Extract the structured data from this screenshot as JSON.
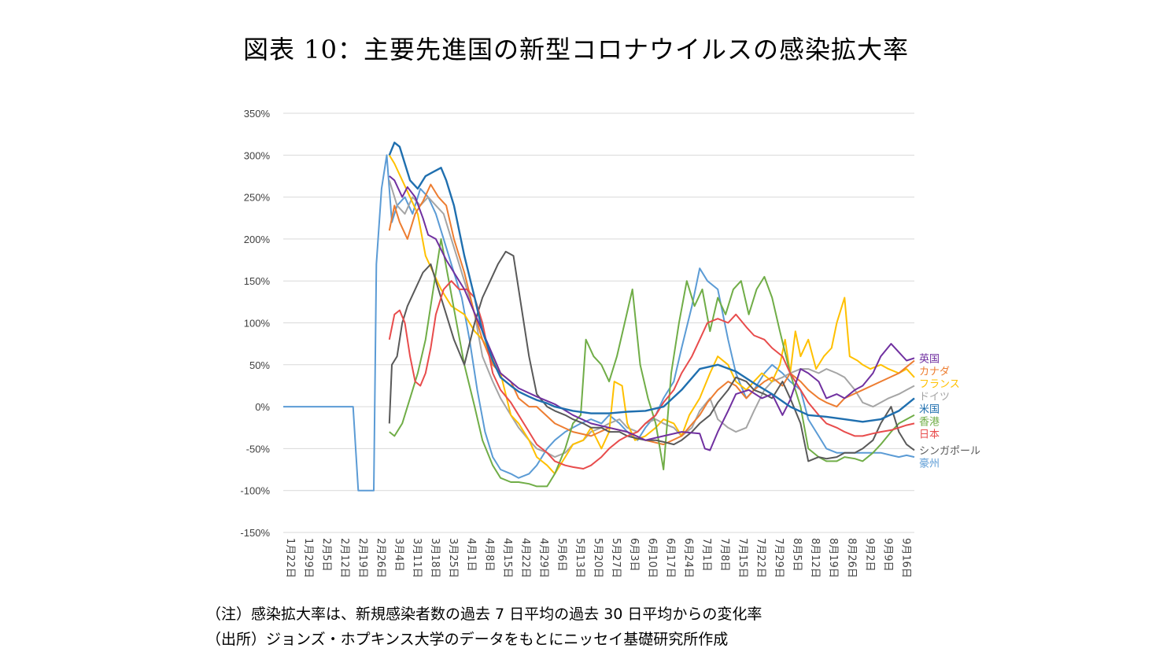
{
  "title": "図表 10：主要先進国の新型コロナウイルスの感染拡大率",
  "notes": {
    "note": "（注）感染拡大率は、新規感染者数の過去 7 日平均の過去 30 日平均からの変化率",
    "source": "（出所）ジョンズ・ホプキンス大学のデータをもとにニッセイ基礎研究所作成"
  },
  "chart_data": {
    "type": "line",
    "title": "",
    "xlabel": "",
    "ylabel": "",
    "grid": true,
    "legend": "end-of-line labels (right)",
    "y_unit": "%",
    "ylim": [
      -150,
      350
    ],
    "yticks": [
      350,
      300,
      250,
      200,
      150,
      100,
      50,
      0,
      -50,
      -100,
      -150
    ],
    "ytick_labels": [
      "350%",
      "300%",
      "250%",
      "200%",
      "150%",
      "100%",
      "50%",
      "0%",
      "-50%",
      "-100%",
      "-150%"
    ],
    "x_start": "2020-01-22",
    "x_end": "2020-09-22",
    "x_ticks": [
      "1月22日",
      "1月29日",
      "2月5日",
      "2月12日",
      "2月19日",
      "2月26日",
      "3月4日",
      "3月11日",
      "3月18日",
      "3月25日",
      "4月1日",
      "4月8日",
      "4月15日",
      "4月22日",
      "4月29日",
      "5月6日",
      "5月13日",
      "5月20日",
      "5月27日",
      "6月3日",
      "6月10日",
      "6月17日",
      "6月24日",
      "7月1日",
      "7月8日",
      "7月15日",
      "7月22日",
      "7月29日",
      "8月5日",
      "8月12日",
      "8月19日",
      "8月26日",
      "9月2日",
      "9月9日",
      "9月16日"
    ],
    "series": [
      {
        "name": "英国",
        "color": "#7030a0",
        "x": [
          "3/3",
          "3/5",
          "3/8",
          "3/10",
          "3/13",
          "3/16",
          "3/18",
          "3/21",
          "3/25",
          "4/1",
          "4/8",
          "4/15",
          "4/22",
          "4/29",
          "5/6",
          "5/13",
          "5/20",
          "5/27",
          "6/3",
          "6/10",
          "6/17",
          "6/24",
          "7/1",
          "7/3",
          "7/5",
          "7/8",
          "7/12",
          "7/15",
          "7/20",
          "7/25",
          "7/29",
          "8/2",
          "8/5",
          "8/9",
          "8/12",
          "8/16",
          "8/19",
          "8/23",
          "8/26",
          "8/30",
          "9/2",
          "9/6",
          "9/9",
          "9/13",
          "9/16",
          "9/19",
          "9/22"
        ],
        "y": [
          275,
          270,
          250,
          262,
          250,
          225,
          205,
          200,
          175,
          140,
          90,
          40,
          22,
          12,
          3,
          -10,
          -20,
          -25,
          -30,
          -40,
          -35,
          -30,
          -32,
          -50,
          -52,
          -30,
          -5,
          15,
          20,
          10,
          15,
          -10,
          8,
          45,
          40,
          30,
          10,
          15,
          10,
          20,
          25,
          40,
          60,
          75,
          65,
          55,
          58
        ]
      },
      {
        "name": "カナダ",
        "color": "#ed7d31",
        "x": [
          "3/3",
          "3/5",
          "3/7",
          "3/10",
          "3/13",
          "3/16",
          "3/19",
          "3/22",
          "3/25",
          "3/28",
          "4/1",
          "4/5",
          "4/8",
          "4/12",
          "4/15",
          "4/19",
          "4/22",
          "4/26",
          "4/29",
          "5/6",
          "5/13",
          "5/20",
          "5/27",
          "6/3",
          "6/10",
          "6/17",
          "6/24",
          "7/1",
          "7/4",
          "7/8",
          "7/12",
          "7/15",
          "7/19",
          "7/22",
          "7/26",
          "7/29",
          "8/2",
          "8/5",
          "8/9",
          "8/12",
          "8/16",
          "8/19",
          "8/23",
          "8/26",
          "9/2",
          "9/9",
          "9/16",
          "9/22"
        ],
        "y": [
          210,
          240,
          220,
          200,
          230,
          245,
          265,
          250,
          240,
          200,
          160,
          110,
          80,
          50,
          40,
          30,
          10,
          0,
          0,
          -20,
          -30,
          -35,
          -25,
          -30,
          -40,
          -45,
          -35,
          -10,
          5,
          20,
          30,
          25,
          10,
          20,
          30,
          35,
          25,
          40,
          30,
          20,
          10,
          5,
          0,
          10,
          20,
          30,
          40,
          55
        ]
      },
      {
        "name": "フランス",
        "color": "#ffc000",
        "x": [
          "3/3",
          "3/5",
          "3/8",
          "3/11",
          "3/14",
          "3/17",
          "3/20",
          "3/23",
          "3/27",
          "4/1",
          "4/5",
          "4/8",
          "4/12",
          "4/15",
          "4/19",
          "4/22",
          "4/26",
          "4/29",
          "5/3",
          "5/6",
          "5/10",
          "5/13",
          "5/17",
          "5/20",
          "5/24",
          "5/27",
          "5/29",
          "6/1",
          "6/3",
          "6/6",
          "6/10",
          "6/14",
          "6/17",
          "6/21",
          "6/24",
          "6/27",
          "7/1",
          "7/5",
          "7/8",
          "7/12",
          "7/15",
          "7/19",
          "7/22",
          "7/25",
          "7/29",
          "8/1",
          "8/3",
          "8/5",
          "8/7",
          "8/9",
          "8/12",
          "8/15",
          "8/18",
          "8/21",
          "8/23",
          "8/25",
          "8/26",
          "8/28",
          "8/31",
          "9/2",
          "9/5",
          "9/9",
          "9/12",
          "9/16",
          "9/19",
          "9/22"
        ],
        "y": [
          300,
          290,
          270,
          250,
          230,
          180,
          160,
          140,
          120,
          110,
          90,
          80,
          60,
          40,
          -10,
          -20,
          -40,
          -60,
          -70,
          -80,
          -60,
          -45,
          -40,
          -25,
          -50,
          -30,
          30,
          25,
          -20,
          -40,
          -35,
          -25,
          -15,
          -20,
          -35,
          -10,
          10,
          40,
          60,
          50,
          30,
          20,
          30,
          40,
          30,
          50,
          80,
          40,
          90,
          60,
          80,
          45,
          60,
          70,
          100,
          120,
          130,
          60,
          55,
          50,
          45,
          50,
          45,
          40,
          45,
          35
        ]
      },
      {
        "name": "ドイツ",
        "color": "#a5a5a5",
        "x": [
          "3/3",
          "3/6",
          "3/9",
          "3/12",
          "3/15",
          "3/18",
          "3/21",
          "3/24",
          "3/27",
          "4/1",
          "4/5",
          "4/8",
          "4/12",
          "4/15",
          "4/19",
          "4/22",
          "4/26",
          "4/29",
          "5/3",
          "5/6",
          "5/10",
          "5/13",
          "5/17",
          "5/20",
          "5/24",
          "5/27",
          "5/31",
          "6/3",
          "6/7",
          "6/10",
          "6/14",
          "6/17",
          "6/21",
          "6/24",
          "6/28",
          "7/1",
          "7/5",
          "7/8",
          "7/12",
          "7/15",
          "7/19",
          "7/22",
          "7/26",
          "7/29",
          "8/2",
          "8/5",
          "8/9",
          "8/12",
          "8/16",
          "8/19",
          "8/23",
          "8/26",
          "8/30",
          "9/2",
          "9/6",
          "9/9",
          "9/12",
          "9/16",
          "9/19",
          "9/22"
        ],
        "y": [
          270,
          240,
          230,
          250,
          240,
          250,
          240,
          230,
          200,
          150,
          110,
          60,
          30,
          10,
          -10,
          -25,
          -40,
          -50,
          -55,
          -60,
          -55,
          -45,
          -40,
          -30,
          -25,
          -20,
          -15,
          -25,
          -30,
          -20,
          -15,
          -20,
          -25,
          -35,
          -25,
          -5,
          10,
          -15,
          -25,
          -30,
          -25,
          -5,
          20,
          30,
          35,
          40,
          45,
          45,
          40,
          45,
          40,
          35,
          20,
          5,
          0,
          5,
          10,
          15,
          20,
          25
        ]
      },
      {
        "name": "米国",
        "color": "#1f6faf",
        "x": [
          "3/3",
          "3/5",
          "3/7",
          "3/9",
          "3/11",
          "3/14",
          "3/17",
          "3/20",
          "3/23",
          "3/25",
          "3/28",
          "4/1",
          "4/5",
          "4/8",
          "4/12",
          "4/15",
          "4/19",
          "4/22",
          "4/26",
          "4/29",
          "5/3",
          "5/6",
          "5/13",
          "5/20",
          "5/27",
          "6/3",
          "6/10",
          "6/17",
          "6/24",
          "7/1",
          "7/8",
          "7/15",
          "7/22",
          "7/29",
          "8/5",
          "8/12",
          "8/19",
          "8/26",
          "9/2",
          "9/9",
          "9/16",
          "9/22"
        ],
        "y": [
          300,
          315,
          310,
          290,
          270,
          260,
          275,
          280,
          285,
          270,
          240,
          180,
          130,
          90,
          55,
          35,
          25,
          18,
          12,
          8,
          4,
          0,
          -5,
          -8,
          -8,
          -6,
          -5,
          0,
          20,
          45,
          50,
          42,
          28,
          15,
          0,
          -10,
          -12,
          -15,
          -18,
          -15,
          -5,
          10
        ]
      },
      {
        "name": "香港",
        "color": "#70ad47",
        "x": [
          "3/3",
          "3/5",
          "3/8",
          "3/11",
          "3/14",
          "3/17",
          "3/20",
          "3/23",
          "3/26",
          "3/29",
          "4/1",
          "4/5",
          "4/8",
          "4/12",
          "4/15",
          "4/19",
          "4/22",
          "4/26",
          "4/29",
          "5/3",
          "5/6",
          "5/10",
          "5/13",
          "5/16",
          "5/18",
          "5/21",
          "5/24",
          "5/27",
          "5/30",
          "6/2",
          "6/5",
          "6/8",
          "6/11",
          "6/14",
          "6/17",
          "6/20",
          "6/23",
          "6/26",
          "6/29",
          "7/2",
          "7/5",
          "7/8",
          "7/11",
          "7/14",
          "7/17",
          "7/20",
          "7/23",
          "7/26",
          "7/29",
          "8/1",
          "8/5",
          "8/9",
          "8/12",
          "8/16",
          "8/19",
          "8/23",
          "8/26",
          "8/30",
          "9/2",
          "9/6",
          "9/9",
          "9/13",
          "9/16",
          "9/19",
          "9/22"
        ],
        "y": [
          -30,
          -35,
          -20,
          10,
          40,
          80,
          140,
          200,
          150,
          100,
          50,
          0,
          -40,
          -70,
          -85,
          -90,
          -90,
          -92,
          -95,
          -95,
          -80,
          -50,
          -20,
          -10,
          80,
          60,
          50,
          30,
          60,
          100,
          140,
          50,
          10,
          -20,
          -75,
          40,
          100,
          150,
          120,
          140,
          90,
          130,
          110,
          140,
          150,
          110,
          140,
          155,
          130,
          90,
          40,
          0,
          -50,
          -60,
          -65,
          -65,
          -60,
          -62,
          -65,
          -55,
          -45,
          -30,
          -20,
          -15,
          -10
        ]
      },
      {
        "name": "日本",
        "color": "#e84c4c",
        "x": [
          "3/3",
          "3/5",
          "3/7",
          "3/9",
          "3/11",
          "3/13",
          "3/15",
          "3/17",
          "3/19",
          "3/21",
          "3/24",
          "3/27",
          "3/30",
          "4/2",
          "4/5",
          "4/8",
          "4/12",
          "4/15",
          "4/19",
          "4/22",
          "4/26",
          "4/29",
          "5/3",
          "5/6",
          "5/10",
          "5/13",
          "5/17",
          "5/20",
          "5/24",
          "5/27",
          "5/31",
          "6/3",
          "6/7",
          "6/10",
          "6/14",
          "6/17",
          "6/21",
          "6/24",
          "6/28",
          "7/1",
          "7/4",
          "7/8",
          "7/12",
          "7/15",
          "7/19",
          "7/22",
          "7/26",
          "7/29",
          "8/2",
          "8/5",
          "8/9",
          "8/12",
          "8/16",
          "8/19",
          "8/23",
          "8/26",
          "8/30",
          "9/2",
          "9/6",
          "9/9",
          "9/13",
          "9/16",
          "9/19",
          "9/22"
        ],
        "y": [
          80,
          110,
          115,
          100,
          60,
          30,
          25,
          40,
          70,
          110,
          140,
          150,
          140,
          140,
          130,
          100,
          40,
          20,
          5,
          -10,
          -30,
          -45,
          -55,
          -65,
          -70,
          -72,
          -74,
          -70,
          -60,
          -50,
          -40,
          -35,
          -30,
          -20,
          -10,
          5,
          20,
          40,
          60,
          80,
          100,
          105,
          100,
          110,
          95,
          85,
          80,
          70,
          60,
          40,
          20,
          5,
          -10,
          -20,
          -25,
          -30,
          -35,
          -35,
          -32,
          -30,
          -28,
          -25,
          -22,
          -20
        ]
      },
      {
        "name": "シンガポール",
        "color": "#595959",
        "x": [
          "3/3",
          "3/4",
          "3/6",
          "3/8",
          "3/10",
          "3/13",
          "3/16",
          "3/19",
          "3/22",
          "3/25",
          "3/28",
          "4/1",
          "4/5",
          "4/8",
          "4/11",
          "4/14",
          "4/17",
          "4/20",
          "4/23",
          "4/26",
          "4/29",
          "5/3",
          "5/6",
          "5/10",
          "5/13",
          "5/17",
          "5/20",
          "5/24",
          "5/27",
          "5/31",
          "6/3",
          "6/7",
          "6/10",
          "6/14",
          "6/17",
          "6/21",
          "6/24",
          "6/28",
          "7/1",
          "7/5",
          "7/8",
          "7/12",
          "7/15",
          "7/19",
          "7/22",
          "7/26",
          "7/29",
          "8/2",
          "8/5",
          "8/9",
          "8/12",
          "8/16",
          "8/19",
          "8/23",
          "8/26",
          "8/30",
          "9/2",
          "9/6",
          "9/9",
          "9/13",
          "9/16",
          "9/19",
          "9/22"
        ],
        "y": [
          -20,
          50,
          60,
          100,
          120,
          140,
          160,
          170,
          140,
          110,
          80,
          50,
          100,
          130,
          150,
          170,
          185,
          180,
          120,
          60,
          15,
          0,
          -5,
          -10,
          -15,
          -20,
          -25,
          -25,
          -30,
          -30,
          -35,
          -38,
          -40,
          -40,
          -42,
          -45,
          -40,
          -30,
          -20,
          -10,
          5,
          20,
          35,
          30,
          20,
          15,
          10,
          30,
          10,
          -20,
          -65,
          -60,
          -62,
          -60,
          -55,
          -55,
          -50,
          -40,
          -20,
          0,
          -30,
          -45,
          -52
        ]
      },
      {
        "name": "豪州",
        "color": "#5b9bd5",
        "x": [
          "1/22",
          "2/18",
          "2/20",
          "2/26",
          "2/27",
          "2/29",
          "3/2",
          "3/4",
          "3/6",
          "3/9",
          "3/12",
          "3/15",
          "3/18",
          "3/21",
          "3/24",
          "3/27",
          "3/31",
          "4/3",
          "4/6",
          "4/9",
          "4/12",
          "4/15",
          "4/19",
          "4/22",
          "4/26",
          "4/29",
          "5/3",
          "5/6",
          "5/10",
          "5/13",
          "5/16",
          "5/20",
          "5/24",
          "5/27",
          "5/31",
          "6/3",
          "6/7",
          "6/10",
          "6/14",
          "6/17",
          "6/21",
          "6/24",
          "6/28",
          "7/1",
          "7/4",
          "7/8",
          "7/12",
          "7/15",
          "7/19",
          "7/22",
          "7/26",
          "7/29",
          "8/2",
          "8/5",
          "8/9",
          "8/12",
          "8/16",
          "8/19",
          "8/23",
          "8/26",
          "8/30",
          "9/2",
          "9/6",
          "9/9",
          "9/13",
          "9/16",
          "9/19",
          "9/22"
        ],
        "y": [
          0,
          0,
          -100,
          -100,
          170,
          260,
          300,
          220,
          240,
          250,
          230,
          260,
          250,
          230,
          200,
          170,
          130,
          80,
          20,
          -30,
          -60,
          -75,
          -80,
          -85,
          -80,
          -70,
          -50,
          -40,
          -30,
          -25,
          -20,
          -15,
          -20,
          -10,
          -20,
          -30,
          -40,
          -25,
          -10,
          10,
          30,
          70,
          120,
          165,
          150,
          140,
          80,
          40,
          10,
          20,
          40,
          50,
          40,
          30,
          20,
          -15,
          -35,
          -50,
          -55,
          -55,
          -55,
          -55,
          -55,
          -55,
          -58,
          -60,
          -58,
          -60
        ]
      }
    ]
  }
}
